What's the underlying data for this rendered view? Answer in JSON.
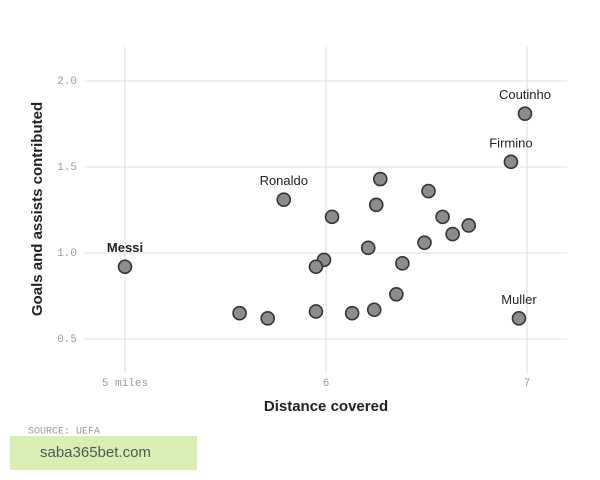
{
  "chart_data": {
    "type": "scatter",
    "x_label": "Distance covered",
    "y_label": "Goals and assists contributed",
    "source": "SOURCE: UEFA",
    "watermark": "saba365bet.com",
    "x": [
      5.0,
      5.79,
      6.99,
      6.92,
      6.96,
      6.27,
      6.51,
      6.03,
      6.25,
      6.58,
      6.71,
      6.63,
      6.49,
      6.21,
      5.99,
      5.95,
      6.38,
      6.35,
      5.57,
      5.71,
      5.95,
      6.13,
      6.24
    ],
    "values": [
      0.92,
      1.31,
      1.81,
      1.53,
      0.62,
      1.43,
      1.36,
      1.21,
      1.28,
      1.21,
      1.16,
      1.11,
      1.06,
      1.03,
      0.96,
      0.92,
      0.94,
      0.76,
      0.65,
      0.62,
      0.66,
      0.65,
      0.67
    ],
    "point_labels": [
      "Messi",
      "Ronaldo",
      "Coutinho",
      "Firmino",
      "Muller",
      null,
      null,
      null,
      null,
      null,
      null,
      null,
      null,
      null,
      null,
      null,
      null,
      null,
      null,
      null,
      null,
      null,
      null
    ],
    "color": "#8c8c8c",
    "xlim": [
      4.8,
      7.2
    ],
    "xticks": [
      {
        "value": 5,
        "label": "5 miles"
      },
      6,
      7
    ],
    "ylim": [
      0.3,
      2.2
    ],
    "yticks": [
      0.5,
      {
        "value": 1,
        "label": "1.0"
      },
      1.5,
      {
        "value": 2,
        "label": "2.0"
      }
    ],
    "grid": true
  }
}
